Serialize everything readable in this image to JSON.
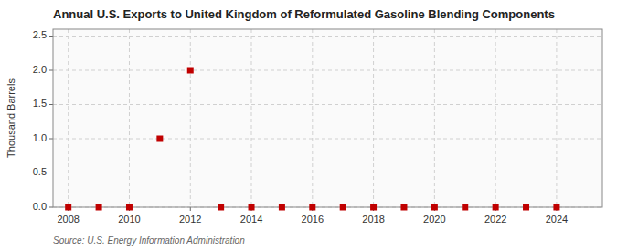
{
  "chart_data": {
    "type": "scatter",
    "title": "Annual U.S. Exports to United Kingdom of Reformulated Gasoline Blending Components",
    "y_label": "Thousand Barrels",
    "source": "Source: U.S. Energy Information Administration",
    "x": [
      2008,
      2009,
      2010,
      2011,
      2012,
      2013,
      2014,
      2015,
      2016,
      2017,
      2018,
      2019,
      2020,
      2021,
      2022,
      2023,
      2024
    ],
    "values": [
      0,
      0,
      0,
      1.0,
      2.0,
      0,
      0,
      0,
      0,
      0,
      0,
      0,
      0,
      0,
      0,
      0,
      0
    ],
    "color": "#C00000",
    "marker": "square",
    "grid": true,
    "xlim": [
      2007.5,
      2025.5
    ],
    "ylim": [
      0.0,
      2.6
    ],
    "xticks": [
      2008,
      2010,
      2012,
      2014,
      2016,
      2018,
      2020,
      2022,
      2024
    ],
    "yticks": [
      {
        "value": 0.0,
        "label": "0.0"
      },
      0.5,
      {
        "value": 1.0,
        "label": "1.0"
      },
      1.5,
      {
        "value": 2.0,
        "label": "2.0"
      },
      2.5
    ]
  }
}
